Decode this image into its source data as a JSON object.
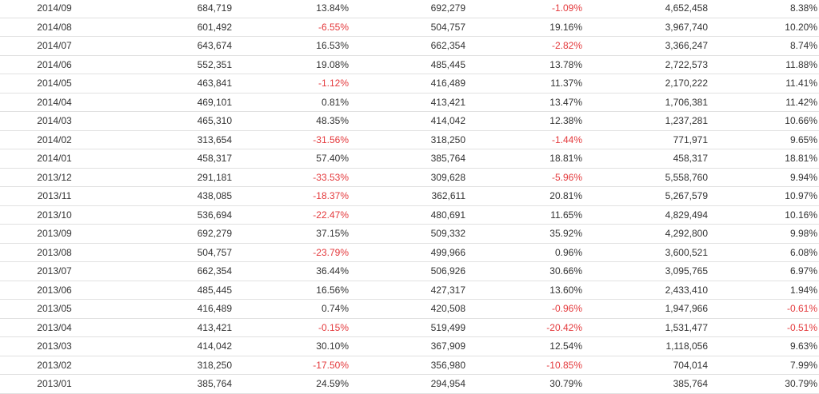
{
  "table": {
    "rows": [
      [
        "2014/09",
        "684,719",
        "13.84%",
        "692,279",
        "-1.09%",
        "4,652,458",
        "8.38%"
      ],
      [
        "2014/08",
        "601,492",
        "-6.55%",
        "504,757",
        "19.16%",
        "3,967,740",
        "10.20%"
      ],
      [
        "2014/07",
        "643,674",
        "16.53%",
        "662,354",
        "-2.82%",
        "3,366,247",
        "8.74%"
      ],
      [
        "2014/06",
        "552,351",
        "19.08%",
        "485,445",
        "13.78%",
        "2,722,573",
        "11.88%"
      ],
      [
        "2014/05",
        "463,841",
        "-1.12%",
        "416,489",
        "11.37%",
        "2,170,222",
        "11.41%"
      ],
      [
        "2014/04",
        "469,101",
        "0.81%",
        "413,421",
        "13.47%",
        "1,706,381",
        "11.42%"
      ],
      [
        "2014/03",
        "465,310",
        "48.35%",
        "414,042",
        "12.38%",
        "1,237,281",
        "10.66%"
      ],
      [
        "2014/02",
        "313,654",
        "-31.56%",
        "318,250",
        "-1.44%",
        "771,971",
        "9.65%"
      ],
      [
        "2014/01",
        "458,317",
        "57.40%",
        "385,764",
        "18.81%",
        "458,317",
        "18.81%"
      ],
      [
        "2013/12",
        "291,181",
        "-33.53%",
        "309,628",
        "-5.96%",
        "5,558,760",
        "9.94%"
      ],
      [
        "2013/11",
        "438,085",
        "-18.37%",
        "362,611",
        "20.81%",
        "5,267,579",
        "10.97%"
      ],
      [
        "2013/10",
        "536,694",
        "-22.47%",
        "480,691",
        "11.65%",
        "4,829,494",
        "10.16%"
      ],
      [
        "2013/09",
        "692,279",
        "37.15%",
        "509,332",
        "35.92%",
        "4,292,800",
        "9.98%"
      ],
      [
        "2013/08",
        "504,757",
        "-23.79%",
        "499,966",
        "0.96%",
        "3,600,521",
        "6.08%"
      ],
      [
        "2013/07",
        "662,354",
        "36.44%",
        "506,926",
        "30.66%",
        "3,095,765",
        "6.97%"
      ],
      [
        "2013/06",
        "485,445",
        "16.56%",
        "427,317",
        "13.60%",
        "2,433,410",
        "1.94%"
      ],
      [
        "2013/05",
        "416,489",
        "0.74%",
        "420,508",
        "-0.96%",
        "1,947,966",
        "-0.61%"
      ],
      [
        "2013/04",
        "413,421",
        "-0.15%",
        "519,499",
        "-20.42%",
        "1,531,477",
        "-0.51%"
      ],
      [
        "2013/03",
        "414,042",
        "30.10%",
        "367,909",
        "12.54%",
        "1,118,056",
        "9.63%"
      ],
      [
        "2013/02",
        "318,250",
        "-17.50%",
        "356,980",
        "-10.85%",
        "704,014",
        "7.99%"
      ],
      [
        "2013/01",
        "385,764",
        "24.59%",
        "294,954",
        "30.79%",
        "385,764",
        "30.79%"
      ]
    ]
  },
  "colors": {
    "text": "#333333",
    "negative": "#e4393c",
    "row_border": "#e1e1e1"
  }
}
